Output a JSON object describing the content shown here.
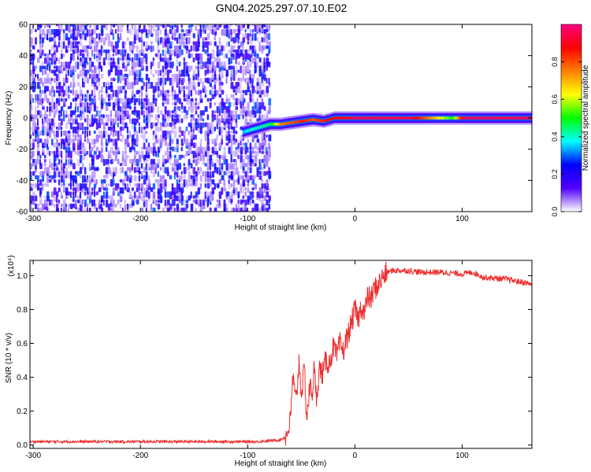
{
  "title": "GN04.2025.297.07.10.E02",
  "chart_data": [
    {
      "type": "heatmap",
      "xlabel": "Height of straight line (km)",
      "ylabel": "Frequency (Hz)",
      "xlim": [
        -303,
        165
      ],
      "ylim": [
        -60,
        60
      ],
      "xticks": [
        -300,
        -200,
        -100,
        0,
        100
      ],
      "yticks": [
        60,
        40,
        20,
        0,
        -20,
        -40,
        -60
      ],
      "noise_region": [
        -303,
        -80
      ],
      "signal_band": [
        {
          "x": -105,
          "f": -9,
          "amp": 0.35
        },
        {
          "x": -95,
          "f": -7,
          "amp": 0.4
        },
        {
          "x": -80,
          "f": -4,
          "amp": 0.45
        },
        {
          "x": -70,
          "f": -4,
          "amp": 0.75
        },
        {
          "x": -60,
          "f": -3,
          "amp": 0.8
        },
        {
          "x": -50,
          "f": -2,
          "amp": 0.85
        },
        {
          "x": -40,
          "f": -1,
          "amp": 0.8
        },
        {
          "x": -30,
          "f": -2,
          "amp": 0.85
        },
        {
          "x": -20,
          "f": 0,
          "amp": 0.9
        },
        {
          "x": -10,
          "f": 0,
          "amp": 0.9
        },
        {
          "x": 0,
          "f": 0,
          "amp": 0.95
        },
        {
          "x": 50,
          "f": 0,
          "amp": 0.95
        },
        {
          "x": 90,
          "f": 0,
          "amp": 0.5
        },
        {
          "x": 100,
          "f": 0,
          "amp": 0.95
        },
        {
          "x": 165,
          "f": 0,
          "amp": 0.95
        }
      ],
      "colorbar": {
        "label": "Normalized spectral amplitude",
        "range": [
          0,
          1
        ],
        "ticks": [
          "0.0",
          "0.2",
          "0.4",
          "0.6",
          "0.8"
        ],
        "colors": [
          "#ffffff",
          "#5000ff",
          "#0000ff",
          "#00ffff",
          "#00ff00",
          "#ffff00",
          "#ff8000",
          "#ff0000",
          "#ff0080"
        ]
      }
    },
    {
      "type": "line",
      "xlabel": "Height of straight line (km)",
      "ylabel": "SNR (10 * v/v)",
      "scale_label": "(x10⁴)",
      "xlim": [
        -303,
        165
      ],
      "ylim": [
        -0.02,
        1.09
      ],
      "xticks": [
        -300,
        -200,
        -100,
        0,
        100
      ],
      "yticks": [
        "0.0",
        "0.2",
        "0.4",
        "0.6",
        "0.8",
        "1.0"
      ],
      "color": "#ee2d2d",
      "series": [
        {
          "name": "SNR",
          "x": [
            -303,
            -200,
            -120,
            -90,
            -70,
            -64,
            -60,
            -58,
            -55,
            -52,
            -50,
            -47,
            -45,
            -42,
            -40,
            -38,
            -36,
            -33,
            -30,
            -27,
            -24,
            -20,
            -17,
            -14,
            -11,
            -8,
            -5,
            -2,
            0,
            3,
            6,
            9,
            12,
            15,
            18,
            21,
            24,
            27,
            30,
            35,
            40,
            50,
            60,
            80,
            100,
            110,
            120,
            140,
            165
          ],
          "y": [
            0.02,
            0.02,
            0.02,
            0.02,
            0.03,
            0.05,
            0.15,
            0.4,
            0.25,
            0.5,
            0.3,
            0.45,
            0.15,
            0.35,
            0.3,
            0.45,
            0.28,
            0.45,
            0.42,
            0.5,
            0.48,
            0.58,
            0.52,
            0.6,
            0.55,
            0.62,
            0.68,
            0.75,
            0.8,
            0.74,
            0.82,
            0.78,
            0.88,
            0.86,
            0.92,
            0.94,
            0.97,
            1.0,
            1.02,
            1.03,
            1.03,
            1.03,
            1.02,
            1.02,
            1.01,
            1.02,
            0.99,
            0.98,
            0.95
          ]
        }
      ]
    }
  ]
}
